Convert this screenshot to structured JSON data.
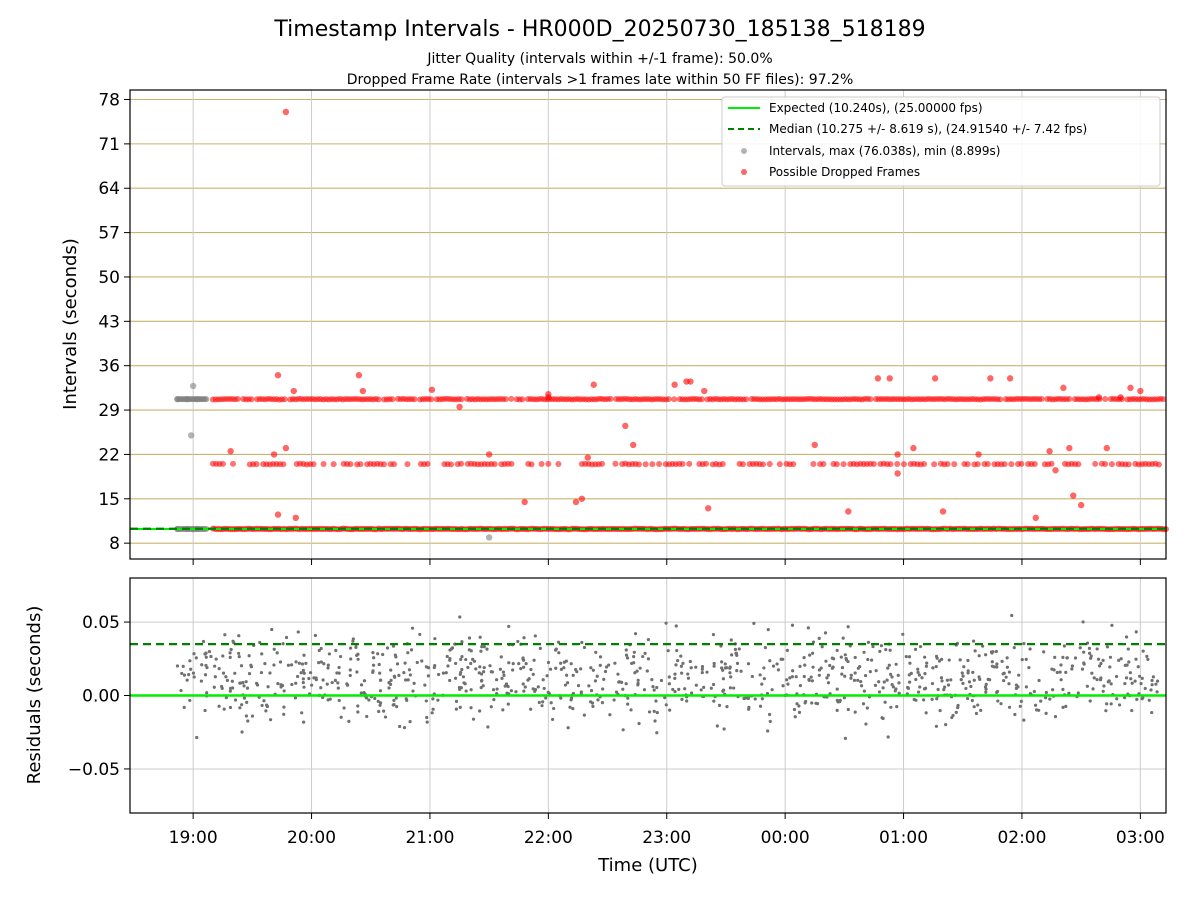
{
  "chart_data": [
    {
      "type": "scatter",
      "title": "Timestamp Intervals - HR000D_20250730_185138_518189",
      "subtitle_lines": [
        "Jitter Quality (intervals within +/-1 frame): 50.0%",
        "Dropped Frame Rate (intervals >1 frames late within 50 FF files): 97.2%"
      ],
      "ylabel": "Intervals (seconds)",
      "xlim": [
        "18:28",
        "03:13"
      ],
      "ylim": [
        5.5,
        79.5
      ],
      "y_ticks": [
        "8",
        "15",
        "22",
        "29",
        "36",
        "43",
        "50",
        "57",
        "64",
        "71",
        "78"
      ],
      "grid": true,
      "legend_position": "top-right",
      "legend": [
        {
          "label": "Expected (10.240s), (25.00000 fps)",
          "style": "solid-line",
          "color": "#00ee00"
        },
        {
          "label": "Median (10.275 +/- 8.619 s), (24.91540 +/- 7.42 fps)",
          "style": "dashed-line",
          "color": "#008000"
        },
        {
          "label": "Intervals, max (76.038s), min (8.899s)",
          "style": "marker",
          "color": "#808080"
        },
        {
          "label": "Possible Dropped Frames",
          "style": "marker",
          "color": "#ff0000"
        }
      ],
      "reference_lines": {
        "expected": 10.24,
        "median": 10.275
      },
      "series": [
        {
          "name": "Intervals, max (76.038s), min (8.899s)",
          "color": "#808080",
          "x": [
            "18:52",
            "18:57",
            "19:02",
            "18:52",
            "18:57",
            "19:02",
            "19:00",
            "18:59",
            "19:00",
            "21:30"
          ],
          "y": [
            10.24,
            10.24,
            10.24,
            30.72,
            30.72,
            30.72,
            32.8,
            25.0,
            10.2,
            8.899
          ]
        },
        {
          "name": "Possible Dropped Frames",
          "color": "#ff0000",
          "bands_note": "dense clusters at ~10.24, ~20.5 and ~30.7 s",
          "x": [
            "19:47",
            "19:43",
            "20:24",
            "21:01",
            "22:00",
            "22:00",
            "22:23",
            "23:04",
            "23:10",
            "23:12",
            "23:19",
            "00:47",
            "00:53",
            "01:16",
            "01:44",
            "01:54",
            "02:21",
            "02:39",
            "02:50",
            "02:55",
            "03:00",
            "19:51",
            "19:19",
            "19:41",
            "19:47",
            "22:20",
            "22:43",
            "00:15",
            "00:57",
            "01:38",
            "02:24",
            "02:14",
            "02:43",
            "22:39",
            "01:05",
            "00:57",
            "19:43",
            "19:52",
            "21:48",
            "22:14",
            "22:17",
            "23:21",
            "00:32",
            "01:20",
            "02:07",
            "02:26",
            "02:30",
            "21:30",
            "20:26",
            "21:15",
            "02:17"
          ],
          "y": [
            76.038,
            34.5,
            34.5,
            32.2,
            31.5,
            31.0,
            33.0,
            33.0,
            33.5,
            33.5,
            32.0,
            34.0,
            34.0,
            34.0,
            34.0,
            34.0,
            32.5,
            31.0,
            31.0,
            32.5,
            32.0,
            32.0,
            22.5,
            22.0,
            23.0,
            21.5,
            23.5,
            23.5,
            22.0,
            22.0,
            23.0,
            22.5,
            23.0,
            26.5,
            23.0,
            19.0,
            12.5,
            12.0,
            14.5,
            14.5,
            15.0,
            13.5,
            13.0,
            13.0,
            12.0,
            15.5,
            14.0,
            22.0,
            32.0,
            29.5,
            19.5
          ]
        }
      ]
    },
    {
      "type": "scatter",
      "ylabel": "Residuals (seconds)",
      "xlabel": "Time (UTC)",
      "xlim": [
        "18:28",
        "03:13"
      ],
      "ylim": [
        -0.08,
        0.08
      ],
      "y_ticks": [
        "−0.05",
        "0.00",
        "0.05"
      ],
      "x_ticks": [
        "19:00",
        "20:00",
        "21:00",
        "22:00",
        "23:00",
        "00:00",
        "01:00",
        "02:00",
        "03:00"
      ],
      "grid": true,
      "reference_lines": {
        "zero": 0.0,
        "median_offset": 0.035
      },
      "series": [
        {
          "name": "Residuals",
          "color": "#808080",
          "note": "about 1000 points scattered between -0.08 and 0.08 s, clustered near 0.00 to 0.03 s"
        }
      ]
    }
  ]
}
